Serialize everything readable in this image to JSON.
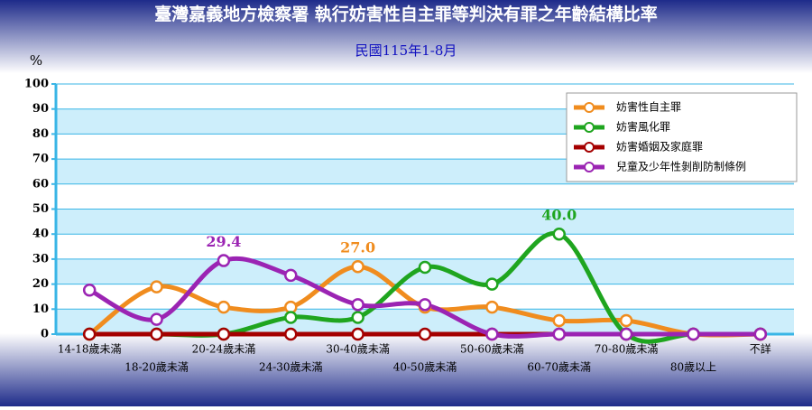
{
  "chart_data": {
    "type": "line",
    "title": "臺灣嘉義地方檢察署  執行妨害性自主罪等判決有罪之年齡結構比率",
    "subtitle": "民國115年1-8月",
    "ylabel": "%",
    "categories": [
      "14-18歲未滿",
      "18-20歲未滿",
      "20-24歲未滿",
      "24-30歲未滿",
      "30-40歲未滿",
      "40-50歲未滿",
      "50-60歲未滿",
      "60-70歲未滿",
      "70-80歲未滿",
      "80歲以上",
      "不詳"
    ],
    "series": [
      {
        "name": "妨害性自主罪",
        "color": "#f08c1e",
        "values": [
          0,
          18.9,
          10.8,
          10.8,
          27.0,
          10.8,
          10.8,
          5.4,
          5.4,
          0,
          0
        ],
        "value_labels": [
          null,
          null,
          null,
          null,
          "27.0",
          null,
          null,
          null,
          null,
          null,
          null
        ]
      },
      {
        "name": "妨害風化罪",
        "color": "#1fa51f",
        "values": [
          0,
          0,
          0,
          6.7,
          6.7,
          26.7,
          20.0,
          40.0,
          0,
          0,
          0
        ],
        "value_labels": [
          null,
          null,
          null,
          null,
          null,
          null,
          null,
          "40.0",
          null,
          null,
          null
        ]
      },
      {
        "name": "妨害婚姻及家庭罪",
        "color": "#a50000",
        "values": [
          0,
          0,
          0,
          0,
          0,
          0,
          0,
          0,
          0,
          0,
          0
        ]
      },
      {
        "name": "兒童及少年性剝削防制條例",
        "color": "#9b24b3",
        "values": [
          17.6,
          5.9,
          29.4,
          23.5,
          11.8,
          11.8,
          0,
          0,
          0,
          0,
          0
        ],
        "value_labels": [
          null,
          null,
          "29.4",
          null,
          null,
          null,
          null,
          null,
          null,
          null,
          null
        ]
      }
    ],
    "ylim": [
      0,
      100
    ],
    "yticks": [
      0,
      10,
      20,
      30,
      40,
      50,
      60,
      70,
      80,
      90,
      100
    ],
    "grid": true,
    "legend": "upper right"
  }
}
